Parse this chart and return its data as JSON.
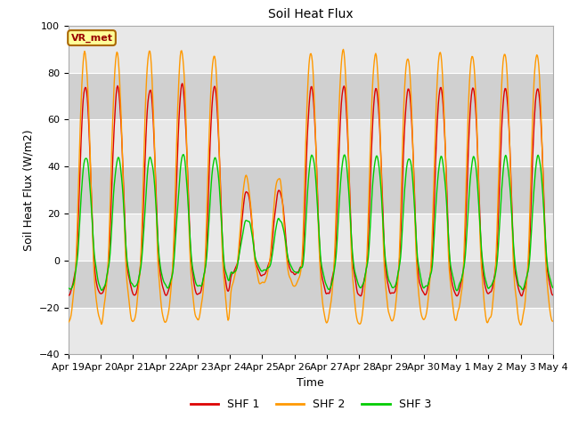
{
  "title": "Soil Heat Flux",
  "xlabel": "Time",
  "ylabel": "Soil Heat Flux (W/m2)",
  "ylim": [
    -40,
    100
  ],
  "yticks": [
    -40,
    -20,
    0,
    20,
    40,
    60,
    80,
    100
  ],
  "colors": {
    "SHF 1": "#dd0000",
    "SHF 2": "#ff9900",
    "SHF 3": "#00cc00"
  },
  "legend_labels": [
    "SHF 1",
    "SHF 2",
    "SHF 3"
  ],
  "annotation_text": "VR_met",
  "annotation_bg": "#ffff99",
  "annotation_border": "#aa6600",
  "plot_bg_light": "#e8e8e8",
  "plot_bg_dark": "#d0d0d0",
  "tick_dates": [
    "Apr 19",
    "Apr 20",
    "Apr 21",
    "Apr 22",
    "Apr 23",
    "Apr 24",
    "Apr 25",
    "Apr 26",
    "Apr 27",
    "Apr 28",
    "Apr 29",
    "Apr 30",
    "May 1",
    "May 2",
    "May 3",
    "May 4"
  ],
  "n_points": 720,
  "n_days": 15
}
